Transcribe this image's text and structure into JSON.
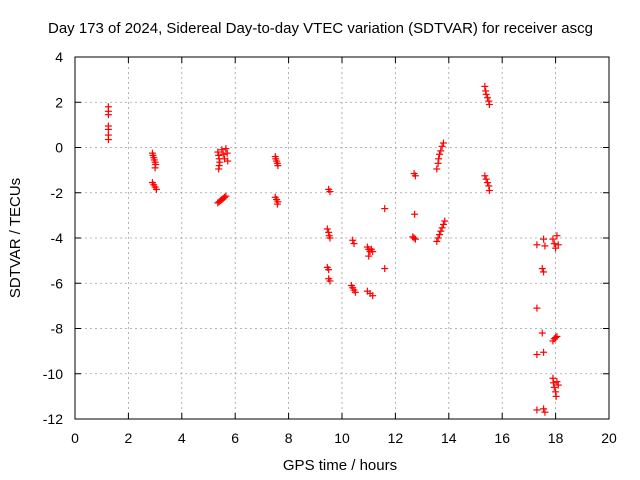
{
  "chart_data": {
    "type": "scatter",
    "title": "Day 173 of 2024, Sidereal Day-to-day VTEC variation (SDTVAR) for receiver ascg",
    "xlabel": "GPS time / hours",
    "ylabel": "SDTVAR / TECUs",
    "xlim": [
      0,
      20
    ],
    "ylim": [
      -12,
      4
    ],
    "xticks": [
      0,
      2,
      4,
      6,
      8,
      10,
      12,
      14,
      16,
      18,
      20
    ],
    "yticks": [
      -12,
      -10,
      -8,
      -6,
      -4,
      -2,
      0,
      2,
      4
    ],
    "grid": true,
    "marker": "+",
    "color": "#ff0000",
    "series": [
      {
        "name": "SDTVAR",
        "points": [
          [
            1.25,
            1.8
          ],
          [
            1.25,
            1.6
          ],
          [
            1.25,
            1.45
          ],
          [
            1.25,
            0.95
          ],
          [
            1.25,
            0.8
          ],
          [
            1.25,
            0.55
          ],
          [
            1.25,
            0.35
          ],
          [
            2.9,
            -0.25
          ],
          [
            2.92,
            -0.35
          ],
          [
            2.95,
            -0.45
          ],
          [
            2.97,
            -0.55
          ],
          [
            3.0,
            -0.65
          ],
          [
            3.02,
            -0.75
          ],
          [
            3.0,
            -0.9
          ],
          [
            2.9,
            -1.55
          ],
          [
            2.95,
            -1.65
          ],
          [
            3.0,
            -1.75
          ],
          [
            3.05,
            -1.85
          ],
          [
            5.35,
            -0.2
          ],
          [
            5.38,
            -0.35
          ],
          [
            5.4,
            -0.5
          ],
          [
            5.42,
            -0.65
          ],
          [
            5.4,
            -0.8
          ],
          [
            5.38,
            -0.95
          ],
          [
            5.5,
            -0.1
          ],
          [
            5.55,
            -0.3
          ],
          [
            5.6,
            -0.5
          ],
          [
            5.65,
            -0.05
          ],
          [
            5.7,
            -0.25
          ],
          [
            5.72,
            -0.6
          ],
          [
            5.35,
            -2.45
          ],
          [
            5.4,
            -2.4
          ],
          [
            5.45,
            -2.35
          ],
          [
            5.5,
            -2.3
          ],
          [
            5.55,
            -2.25
          ],
          [
            5.6,
            -2.2
          ],
          [
            5.65,
            -2.15
          ],
          [
            7.5,
            -0.4
          ],
          [
            7.52,
            -0.5
          ],
          [
            7.55,
            -0.6
          ],
          [
            7.58,
            -0.7
          ],
          [
            7.6,
            -0.8
          ],
          [
            7.5,
            -2.2
          ],
          [
            7.55,
            -2.3
          ],
          [
            7.6,
            -2.4
          ],
          [
            7.58,
            -2.5
          ],
          [
            9.5,
            -1.85
          ],
          [
            9.55,
            -1.95
          ],
          [
            9.45,
            -3.6
          ],
          [
            9.5,
            -3.75
          ],
          [
            9.52,
            -3.9
          ],
          [
            9.55,
            -4.0
          ],
          [
            9.45,
            -5.3
          ],
          [
            9.5,
            -5.4
          ],
          [
            9.5,
            -5.8
          ],
          [
            9.55,
            -5.9
          ],
          [
            10.4,
            -4.1
          ],
          [
            10.45,
            -4.25
          ],
          [
            10.35,
            -6.1
          ],
          [
            10.4,
            -6.2
          ],
          [
            10.45,
            -6.3
          ],
          [
            10.5,
            -6.4
          ],
          [
            10.95,
            -4.4
          ],
          [
            11.0,
            -4.5
          ],
          [
            11.05,
            -4.6
          ],
          [
            11.1,
            -4.5
          ],
          [
            11.15,
            -4.6
          ],
          [
            11.0,
            -4.8
          ],
          [
            10.95,
            -6.35
          ],
          [
            11.05,
            -6.45
          ],
          [
            11.15,
            -6.55
          ],
          [
            11.6,
            -2.7
          ],
          [
            11.6,
            -5.35
          ],
          [
            12.7,
            -1.15
          ],
          [
            12.75,
            -1.25
          ],
          [
            12.72,
            -2.95
          ],
          [
            12.65,
            -3.95
          ],
          [
            12.7,
            -4.0
          ],
          [
            12.75,
            -4.05
          ],
          [
            13.55,
            -0.95
          ],
          [
            13.6,
            -0.7
          ],
          [
            13.62,
            -0.5
          ],
          [
            13.65,
            -0.3
          ],
          [
            13.7,
            -0.15
          ],
          [
            13.75,
            0.05
          ],
          [
            13.8,
            0.2
          ],
          [
            13.55,
            -4.15
          ],
          [
            13.6,
            -4.0
          ],
          [
            13.65,
            -3.85
          ],
          [
            13.7,
            -3.7
          ],
          [
            13.75,
            -3.55
          ],
          [
            13.8,
            -3.4
          ],
          [
            13.85,
            -3.25
          ],
          [
            15.35,
            2.7
          ],
          [
            15.38,
            2.5
          ],
          [
            15.4,
            2.35
          ],
          [
            15.45,
            2.2
          ],
          [
            15.5,
            2.05
          ],
          [
            15.52,
            1.9
          ],
          [
            15.35,
            -1.25
          ],
          [
            15.4,
            -1.4
          ],
          [
            15.45,
            -1.55
          ],
          [
            15.5,
            -1.7
          ],
          [
            15.52,
            -1.9
          ],
          [
            17.3,
            -4.3
          ],
          [
            17.55,
            -4.05
          ],
          [
            17.6,
            -4.35
          ],
          [
            17.5,
            -5.35
          ],
          [
            17.55,
            -5.5
          ],
          [
            17.3,
            -7.1
          ],
          [
            17.5,
            -8.2
          ],
          [
            17.3,
            -9.15
          ],
          [
            17.55,
            -9.05
          ],
          [
            17.3,
            -11.6
          ],
          [
            17.55,
            -11.55
          ],
          [
            17.6,
            -11.7
          ],
          [
            17.9,
            -4.05
          ],
          [
            17.95,
            -4.25
          ],
          [
            18.0,
            -4.45
          ],
          [
            18.05,
            -3.9
          ],
          [
            18.1,
            -4.3
          ],
          [
            17.9,
            -8.55
          ],
          [
            17.95,
            -8.45
          ],
          [
            18.0,
            -8.4
          ],
          [
            18.05,
            -8.35
          ],
          [
            17.9,
            -10.2
          ],
          [
            17.92,
            -10.4
          ],
          [
            17.95,
            -10.6
          ],
          [
            18.0,
            -10.8
          ],
          [
            18.02,
            -11.0
          ],
          [
            18.05,
            -10.35
          ],
          [
            18.1,
            -10.5
          ]
        ]
      }
    ]
  }
}
